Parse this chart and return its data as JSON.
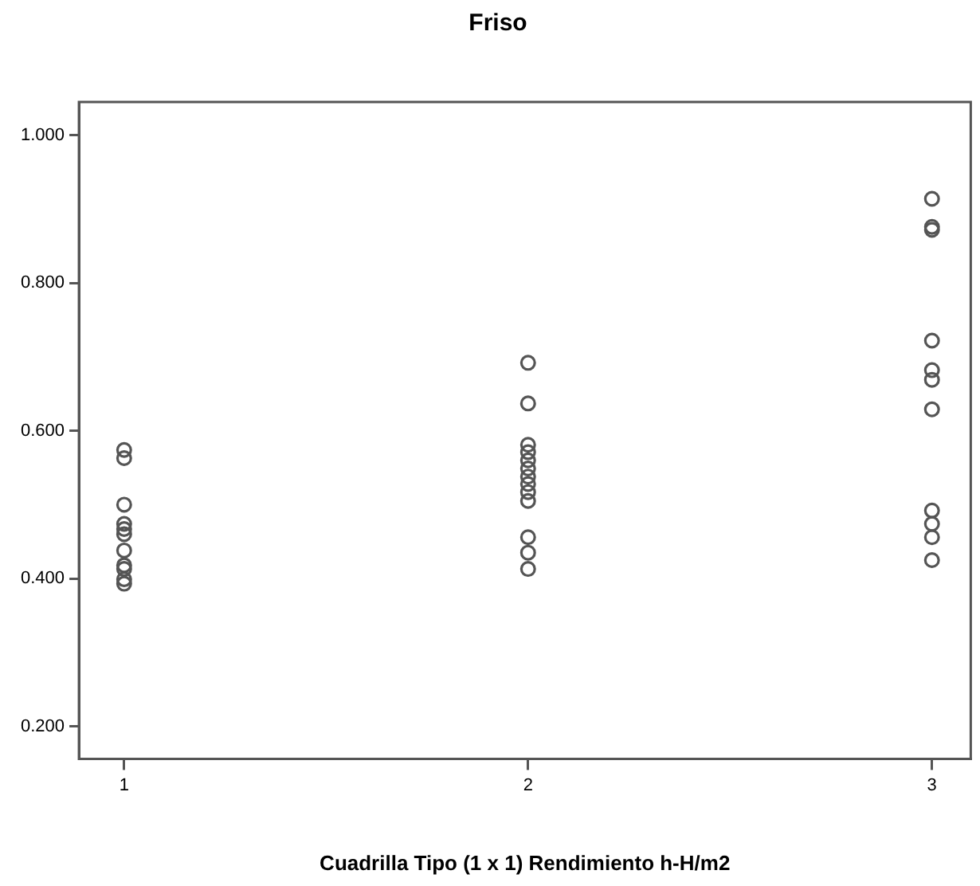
{
  "chart_data": {
    "type": "scatter",
    "title": "Friso",
    "xlabel": "Cuadrilla Tipo (1 x 1) Rendimiento h-H/m2",
    "series": [
      {
        "color": "#555555",
        "x": [
          1,
          1,
          1,
          1,
          1,
          1,
          1,
          1,
          1,
          1,
          1
        ],
        "values": [
          0.574,
          0.563,
          0.5,
          0.474,
          0.467,
          0.46,
          0.438,
          0.418,
          0.413,
          0.399,
          0.393
        ]
      },
      {
        "color": "#555555",
        "x": [
          2,
          2,
          2,
          2,
          2,
          2,
          2,
          2,
          2,
          2,
          2,
          2,
          2
        ],
        "values": [
          0.692,
          0.637,
          0.581,
          0.571,
          0.56,
          0.549,
          0.538,
          0.528,
          0.517,
          0.505,
          0.456,
          0.435,
          0.413
        ]
      },
      {
        "color": "#555555",
        "x": [
          3,
          3,
          3,
          3,
          3,
          3,
          3,
          3,
          3,
          3,
          3
        ],
        "values": [
          0.914,
          0.876,
          0.872,
          0.722,
          0.682,
          0.669,
          0.629,
          0.492,
          0.474,
          0.456,
          0.425
        ]
      }
    ],
    "marker": "circle",
    "grid": false,
    "legend": false,
    "xlim": [
      0.888,
      3.096
    ],
    "xticks": [
      1,
      2,
      3
    ],
    "ylim": [
      0.156,
      1.045
    ],
    "yticks": [
      {
        "value": 0.2,
        "label": "0.200"
      },
      {
        "value": 0.4,
        "label": "0.400"
      },
      {
        "value": 0.6,
        "label": "0.600"
      },
      {
        "value": 0.8,
        "label": "0.800"
      },
      {
        "value": 1.0,
        "label": "1.000"
      }
    ]
  }
}
